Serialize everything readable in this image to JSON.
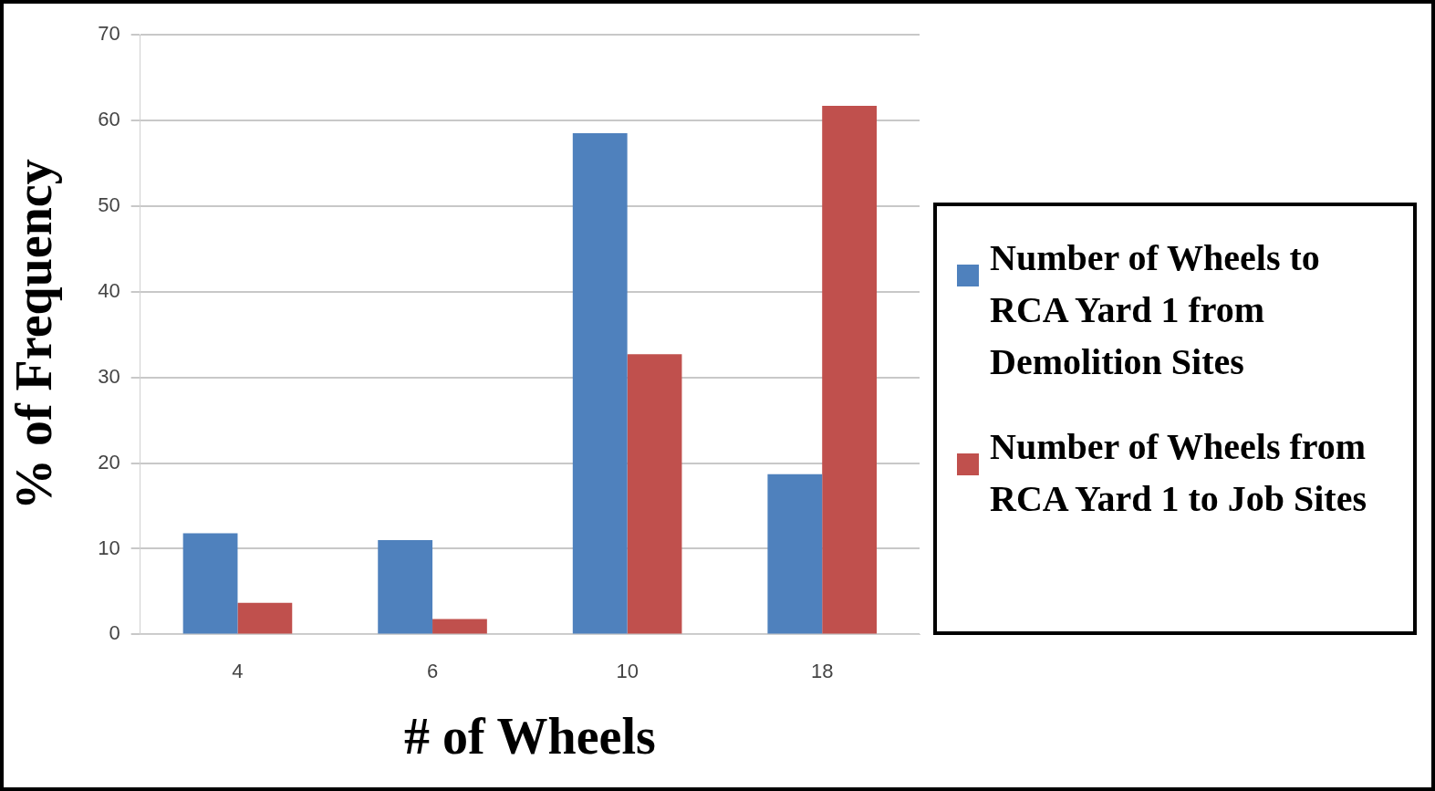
{
  "chart_data": {
    "type": "bar",
    "xlabel": "# of Wheels",
    "ylabel": "% of Frequency",
    "categories": [
      "4",
      "6",
      "10",
      "18"
    ],
    "series": [
      {
        "name": "Number of Wheels to RCA Yard 1 from Demolition Sites",
        "color": "#4f81bd",
        "values": [
          11.8,
          11,
          58.5,
          18.7
        ]
      },
      {
        "name": "Number of Wheels from RCA Yard 1 to Job Sites",
        "color": "#c0504d",
        "values": [
          3.7,
          1.8,
          32.7,
          61.7
        ]
      }
    ],
    "ylim": [
      0,
      70
    ],
    "yticks": [
      0,
      10,
      20,
      30,
      40,
      50,
      60,
      70
    ],
    "grid": "y",
    "legend": "right"
  }
}
